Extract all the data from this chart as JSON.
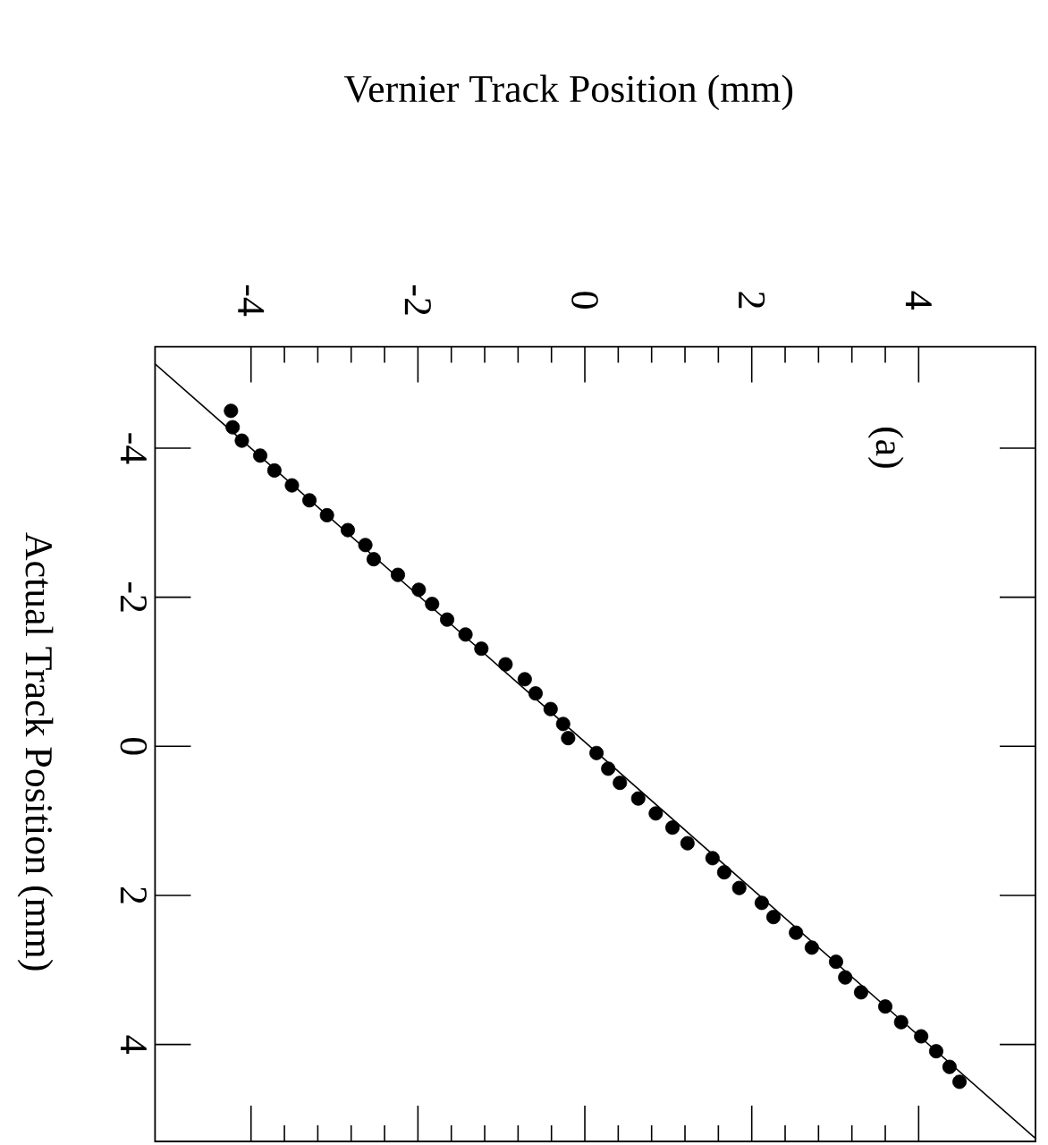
{
  "chart_data": {
    "type": "scatter",
    "xlabel": "Vernier Track Position (mm)",
    "ylabel": "Actual Track Position (mm)",
    "xlim": [
      -5.15,
      5.4
    ],
    "ylim": [
      5.3,
      -5.36
    ],
    "xticks": [
      -4,
      -2,
      0,
      2,
      4
    ],
    "yticks": [
      -4,
      -2,
      0,
      2,
      4
    ],
    "grid": false,
    "annotations": [
      "(a)"
    ],
    "series": [
      {
        "marker": "circle",
        "color": "#000000",
        "x": [
          -4.24,
          -4.22,
          -4.11,
          -3.89,
          -3.72,
          -3.51,
          -3.3,
          -3.09,
          -2.84,
          -2.63,
          -2.53,
          -2.24,
          -1.99,
          -1.83,
          -1.65,
          -1.43,
          -1.24,
          -0.95,
          -0.72,
          -0.59,
          -0.41,
          -0.26,
          -0.2,
          0.14,
          0.28,
          0.42,
          0.64,
          0.85,
          1.05,
          1.23,
          1.53,
          1.67,
          1.85,
          2.12,
          2.26,
          2.53,
          2.72,
          3.01,
          3.12,
          3.31,
          3.6,
          3.79,
          4.03,
          4.21,
          4.37,
          4.49
        ],
        "values": [
          -4.5,
          -4.28,
          -4.1,
          -3.9,
          -3.7,
          -3.5,
          -3.3,
          -3.1,
          -2.9,
          -2.7,
          -2.51,
          -2.3,
          -2.1,
          -1.91,
          -1.7,
          -1.5,
          -1.31,
          -1.1,
          -0.9,
          -0.71,
          -0.5,
          -0.3,
          -0.11,
          0.09,
          0.3,
          0.49,
          0.7,
          0.9,
          1.09,
          1.3,
          1.5,
          1.69,
          1.9,
          2.1,
          2.29,
          2.5,
          2.7,
          2.89,
          3.1,
          3.3,
          3.49,
          3.7,
          3.89,
          4.09,
          4.3,
          4.5
        ]
      },
      {
        "type": "line",
        "marker": "none",
        "color": "#000000",
        "x": [
          -5.15,
          5.4
        ],
        "values": [
          -5.13,
          5.26
        ]
      }
    ]
  }
}
